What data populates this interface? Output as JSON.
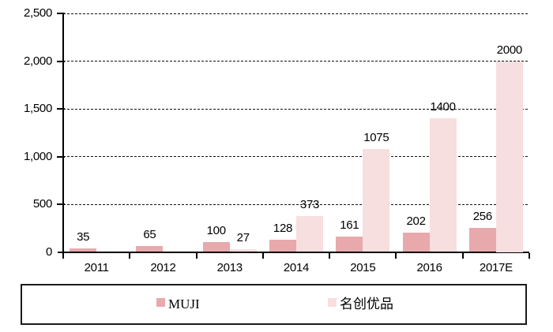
{
  "chart_data": {
    "type": "bar",
    "title": "",
    "xlabel": "",
    "ylabel": "",
    "categories": [
      "2011",
      "2012",
      "2013",
      "2014",
      "2015",
      "2016",
      "2017E"
    ],
    "series": [
      {
        "name": "MUJI",
        "color": "#E8A9AC",
        "values": [
          35,
          65,
          100,
          128,
          161,
          202,
          256
        ]
      },
      {
        "name": "名创优品",
        "color": "#F7DEDF",
        "values": [
          null,
          null,
          27,
          373,
          1075,
          1400,
          2000
        ]
      }
    ],
    "data_labels_visible": true,
    "ylim": [
      0,
      2500
    ],
    "ytick_step": 500,
    "ytick_labels": [
      "0",
      "500",
      "1,000",
      "1,500",
      "2,000",
      "2,500"
    ],
    "grid": "horizontal-dashed",
    "legend_position": "bottom-boxed"
  },
  "legend": {
    "items": [
      {
        "label": "MUJI",
        "color": "#E8A9AC"
      },
      {
        "label": "名创优品",
        "color": "#F7DEDF"
      }
    ]
  },
  "colors": {
    "background": "#FFFFFF",
    "axis": "#000000",
    "text": "#000000",
    "legend_border": "#1A1A1A",
    "series_muji": "#E8A9AC",
    "series_miniso": "#F7DEDF"
  }
}
